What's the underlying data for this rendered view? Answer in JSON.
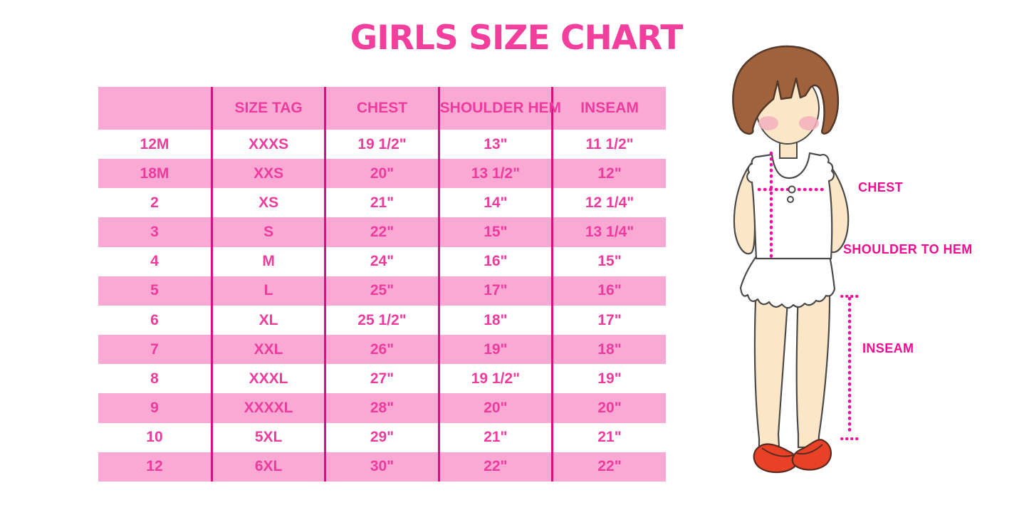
{
  "title": "GIRLS SIZE CHART",
  "colors": {
    "title_pink": "#F23F9D",
    "row_pink": "#F9A9D4",
    "table_text_pink": "#EE3C9E",
    "column_line_magenta": "#D9107F",
    "dotted_line_magenta": "#EC119A",
    "label_magenta": "#F10C93",
    "hair_brown": "#A0613D",
    "skin": "#FBE7C7",
    "blush": "#F4AFBD",
    "shoe_red": "#E94127",
    "garment_white": "#FFFFFF"
  },
  "table": {
    "column_keys": [
      "size",
      "size-tag",
      "chest",
      "shoulder-hem",
      "inseam"
    ],
    "headers": [
      "",
      "SIZE TAG",
      "CHEST",
      "SHOULDER HEM",
      "INSEAM"
    ],
    "rows": [
      [
        "12M",
        "XXXS",
        "19 1/2\"",
        "13\"",
        "11 1/2\""
      ],
      [
        "18M",
        "XXS",
        "20\"",
        "13 1/2\"",
        "12\""
      ],
      [
        "2",
        "XS",
        "21\"",
        "14\"",
        "12 1/4\""
      ],
      [
        "3",
        "S",
        "22\"",
        "15\"",
        "13 1/4\""
      ],
      [
        "4",
        "M",
        "24\"",
        "16\"",
        "15\""
      ],
      [
        "5",
        "L",
        "25\"",
        "17\"",
        "16\""
      ],
      [
        "6",
        "XL",
        "25 1/2\"",
        "18\"",
        "17\""
      ],
      [
        "7",
        "XXL",
        "26\"",
        "19\"",
        "18\""
      ],
      [
        "8",
        "XXXL",
        "27\"",
        "19 1/2\"",
        "19\""
      ],
      [
        "9",
        "XXXXL",
        "28\"",
        "20\"",
        "20\""
      ],
      [
        "10",
        "5XL",
        "29\"",
        "21\"",
        "21\""
      ],
      [
        "12",
        "6XL",
        "30\"",
        "22\"",
        "22\""
      ]
    ]
  },
  "diagram": {
    "labels": {
      "chest": "CHEST",
      "shoulder_to_hem": "SHOULDER TO HEM",
      "inseam": "INSEAM"
    }
  }
}
